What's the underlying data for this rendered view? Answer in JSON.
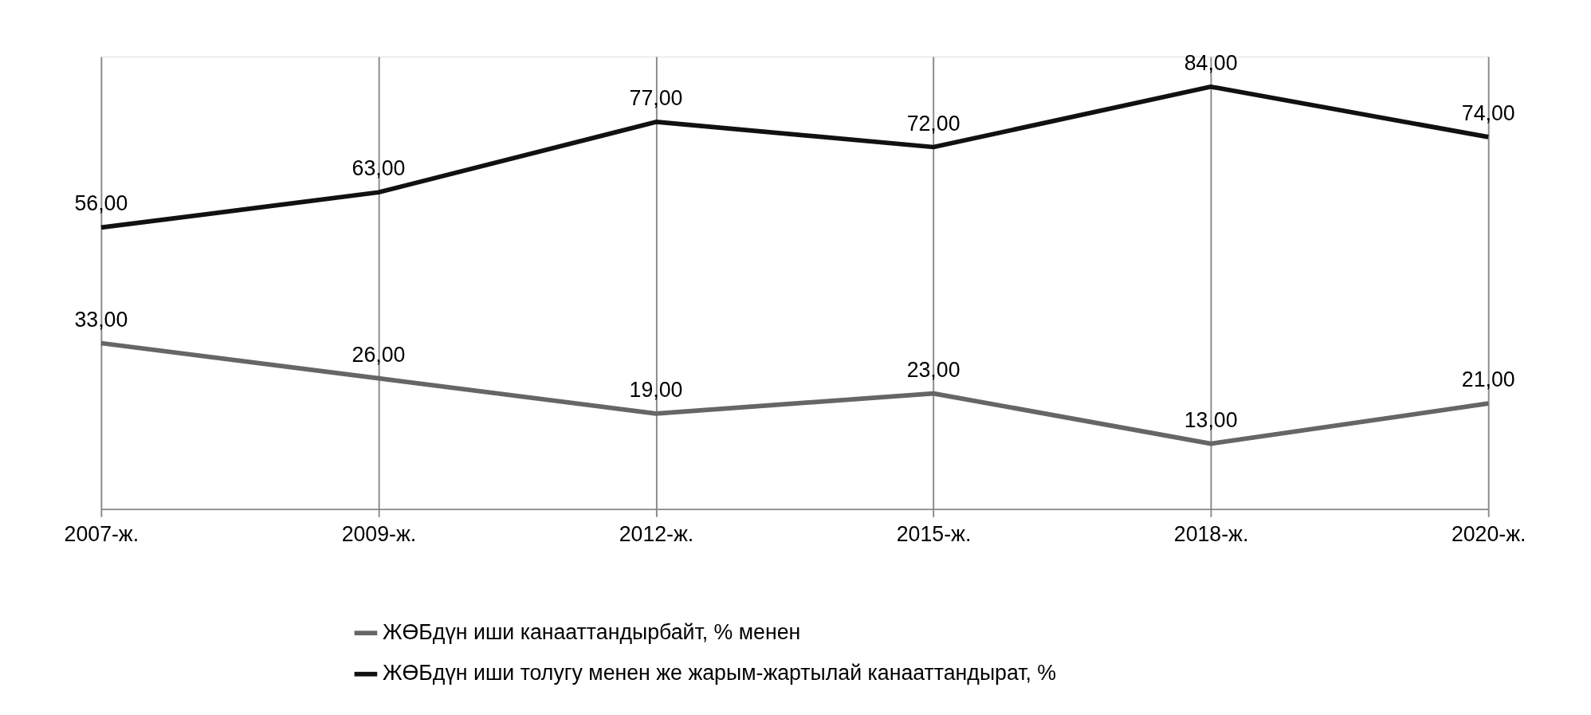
{
  "chart_data": {
    "type": "line",
    "categories": [
      "2007-ж.",
      "2009-ж.",
      "2012-ж.",
      "2015-ж.",
      "2018-ж.",
      "2020-ж."
    ],
    "series": [
      {
        "name": "ЖӨБдүн иши канааттандырбайт, % менен",
        "color": "#666666",
        "values": [
          33,
          26,
          19,
          23,
          13,
          21
        ],
        "value_labels": [
          "33,00",
          "26,00",
          "19,00",
          "23,00",
          "13,00",
          "21,00"
        ]
      },
      {
        "name": "ЖӨБдүн иши толугу менен же жарым-жартылай канааттандырат, %",
        "color": "#111111",
        "values": [
          56,
          63,
          77,
          72,
          84,
          74
        ],
        "value_labels": [
          "56,00",
          "63,00",
          "77,00",
          "72,00",
          "84,00",
          "74,00"
        ]
      }
    ],
    "ylim": [
      0,
      90
    ],
    "tick_labels": "x",
    "grid": "x",
    "legend": "bottom",
    "marker": "none",
    "line_style": "solid"
  }
}
